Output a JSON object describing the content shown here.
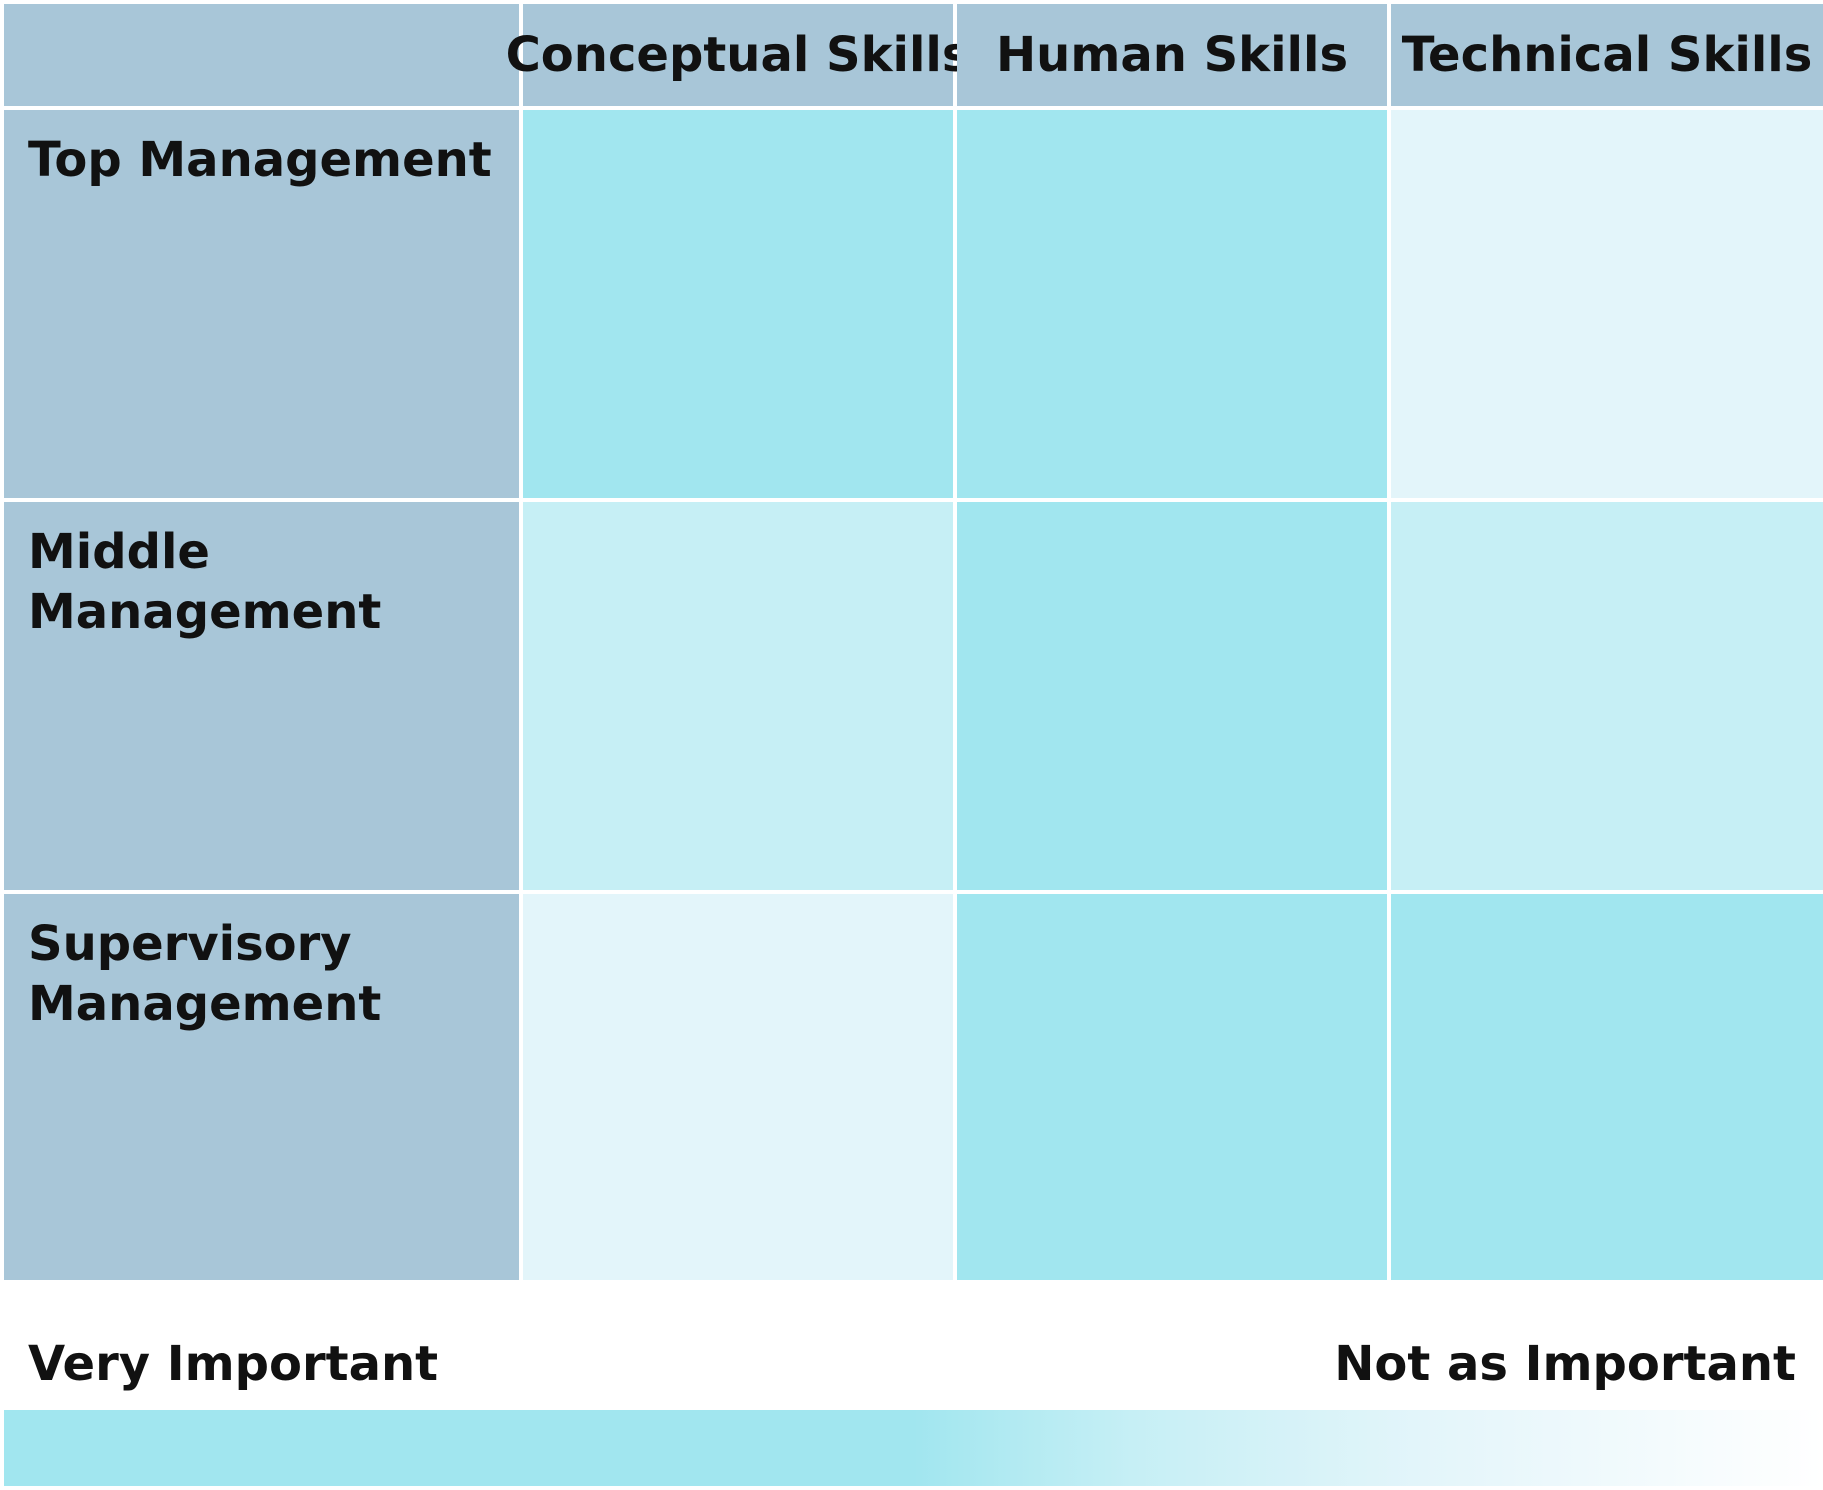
{
  "columns": [
    "Conceptual Skills",
    "Human Skills",
    "Technical Skills"
  ],
  "rows": [
    {
      "label_lines": [
        "Top Management"
      ],
      "importance": [
        "very-important",
        "very-important",
        "not-as-important"
      ]
    },
    {
      "label_lines": [
        "Middle Management"
      ],
      "importance": [
        "moderate",
        "very-important",
        "moderate"
      ]
    },
    {
      "label_lines": [
        "Supervisory",
        "Management"
      ],
      "importance": [
        "not-as-important",
        "very-important",
        "very-important"
      ]
    }
  ],
  "legend": {
    "left_label": "Very Important",
    "right_label": "Not as Important"
  },
  "colors": {
    "header": "#a8c6d8",
    "very-important": "#a1e6ef",
    "moderate": "#c6eff5",
    "not-as-important": "#e3f5fa",
    "gradient_end": "#ffffff"
  }
}
